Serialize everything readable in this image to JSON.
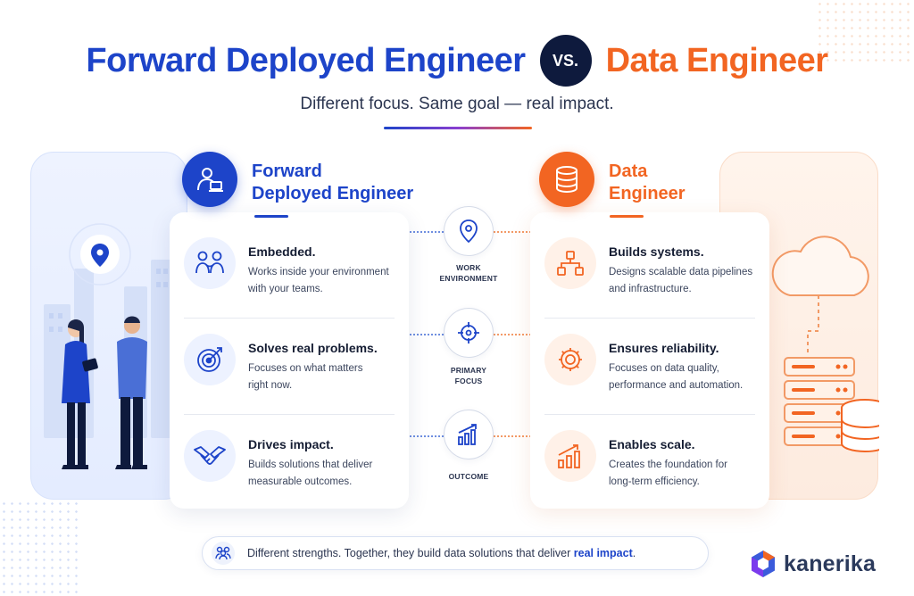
{
  "header": {
    "title_left": "Forward Deployed Engineer",
    "vs": "VS.",
    "title_right": "Data Engineer",
    "subtitle": "Different focus. Same goal — real impact."
  },
  "colors": {
    "fde_blue": "#1d44c9",
    "de_orange": "#f26522",
    "vs_badge": "#0e1a3d"
  },
  "fde": {
    "title_line1": "Forward",
    "title_line2": "Deployed Engineer",
    "icon": "engineer-at-laptop-icon",
    "items": [
      {
        "icon": "team-icon",
        "title": "Embedded.",
        "desc_line1": "Works inside your environment",
        "desc_line2": "with your teams."
      },
      {
        "icon": "target-icon",
        "title": "Solves real problems.",
        "desc_line1": "Focuses on what matters",
        "desc_line2": "right now."
      },
      {
        "icon": "handshake-icon",
        "title": "Drives impact.",
        "desc_line1": "Builds solutions that deliver",
        "desc_line2": "measurable outcomes."
      }
    ]
  },
  "de": {
    "title_line1": "Data",
    "title_line2": "Engineer",
    "icon": "database-icon",
    "items": [
      {
        "icon": "hierarchy-icon",
        "title": "Builds systems.",
        "desc_line1": "Designs scalable data pipelines",
        "desc_line2": "and infrastructure."
      },
      {
        "icon": "gear-icon",
        "title": "Ensures reliability.",
        "desc_line1": "Focuses on data quality,",
        "desc_line2": "performance and automation."
      },
      {
        "icon": "growth-chart-icon",
        "title": "Enables scale.",
        "desc_line1": "Creates the foundation for",
        "desc_line2": "long-term efficiency."
      }
    ]
  },
  "middle": [
    {
      "icon": "location-pin-icon",
      "label_line1": "WORK",
      "label_line2": "ENVIRONMENT"
    },
    {
      "icon": "crosshair-icon",
      "label_line1": "PRIMARY",
      "label_line2": "FOCUS"
    },
    {
      "icon": "bar-chart-icon",
      "label_line1": "OUTCOME",
      "label_line2": ""
    }
  ],
  "footer": {
    "text": "Different strengths. Together, they build data solutions that deliver ",
    "emphasis": "real impact",
    "period": "."
  },
  "brand": {
    "name": "kanerika",
    "icon": "kanerika-logo-icon"
  }
}
